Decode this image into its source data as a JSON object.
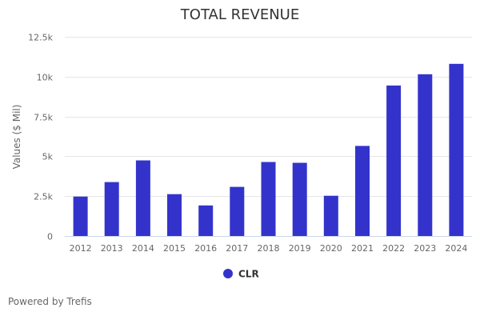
{
  "chart_data": {
    "type": "bar",
    "title": "TOTAL REVENUE",
    "xlabel": "",
    "ylabel": "Values ($ Mil)",
    "categories": [
      "2012",
      "2013",
      "2014",
      "2015",
      "2016",
      "2017",
      "2018",
      "2019",
      "2020",
      "2021",
      "2022",
      "2023",
      "2024"
    ],
    "series": [
      {
        "name": "CLR",
        "color": "#3333cc",
        "values": [
          2475,
          3385,
          4745,
          2625,
          1920,
          3080,
          4645,
          4595,
          2525,
          5655,
          9445,
          10150,
          10805
        ]
      }
    ],
    "ylim": [
      0,
      12500
    ],
    "yticks": [
      0,
      2500,
      5000,
      7500,
      10000,
      12500
    ],
    "ytick_labels": [
      "0",
      "2.5k",
      "5k",
      "7.5k",
      "10k",
      "12.5k"
    ],
    "grid": true,
    "legend": "bottom-center"
  },
  "footer": {
    "credit": "Powered by Trefis"
  }
}
